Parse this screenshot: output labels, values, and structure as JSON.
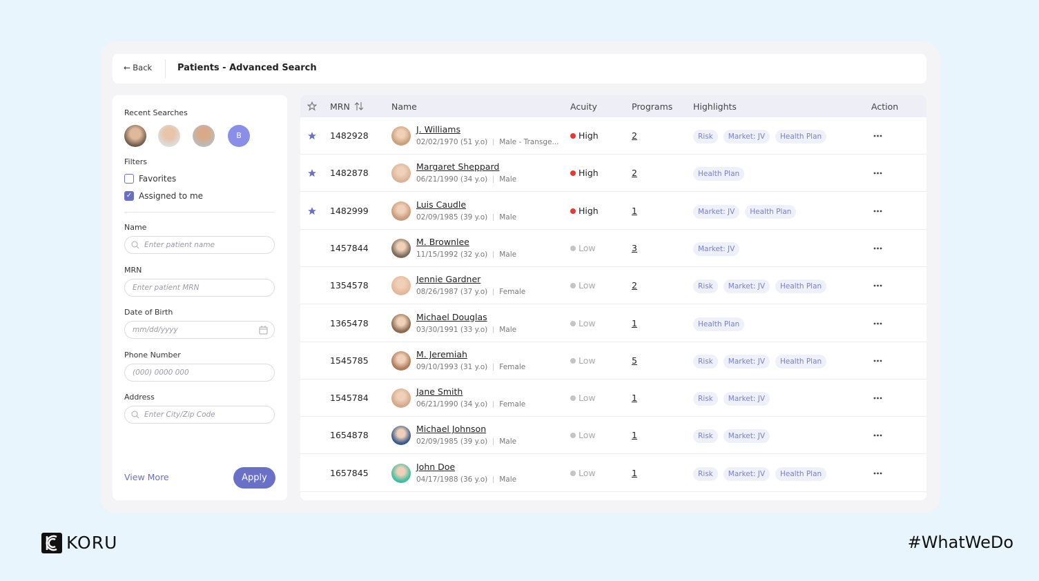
{
  "header": {
    "back": "Back",
    "title": "Patients - Advanced Search"
  },
  "sidebar": {
    "recent_searches": "Recent Searches",
    "recent_initial": "B",
    "filters": {
      "title": "Filters",
      "options": [
        {
          "label": "Favorites",
          "checked": false
        },
        {
          "label": "Assigned to me",
          "checked": true
        }
      ]
    },
    "fields": [
      {
        "label": "Name",
        "placeholder": "Enter patient name",
        "icon": "search"
      },
      {
        "label": "MRN",
        "placeholder": "Enter patient MRN",
        "icon": "none"
      },
      {
        "label": "Date of Birth",
        "placeholder": "mm/dd/yyyy",
        "icon": "calendar"
      },
      {
        "label": "Phone Number",
        "placeholder": "(000) 0000 000",
        "icon": "none"
      },
      {
        "label": "Address",
        "placeholder": "Enter City/Zip Code",
        "icon": "search"
      }
    ],
    "view_more": "View More",
    "apply": "Apply"
  },
  "table": {
    "columns": {
      "mrn": "MRN",
      "name": "Name",
      "acuity": "Acuity",
      "programs": "Programs",
      "highlights": "Highlights",
      "action": "Action"
    },
    "rows": [
      {
        "favorite": true,
        "mrn": 1482928,
        "name": "J. Williams",
        "dob": "02/02/1970 (51 y.o)",
        "gender": "Male - Transge...",
        "acuity": "High",
        "acuity_color": "#e53935",
        "programs": 2,
        "highlights": [
          "Risk",
          "Market: JV",
          "Health Plan"
        ]
      },
      {
        "favorite": true,
        "mrn": 1482878,
        "name": "Margaret Sheppard",
        "dob": "06/21/1990 (34 y.o)",
        "gender": "Male",
        "acuity": "High",
        "acuity_color": "#e53935",
        "programs": 2,
        "highlights": [
          "Health Plan"
        ]
      },
      {
        "favorite": true,
        "mrn": 1482999,
        "name": "Luis Caudle",
        "dob": "02/09/1985 (39 y.o)",
        "gender": "Male",
        "acuity": "High",
        "acuity_color": "#e53935",
        "programs": 1,
        "highlights": [
          "Market: JV",
          "Health Plan"
        ]
      },
      {
        "favorite": false,
        "mrn": 1457844,
        "name": "M. Brownlee",
        "dob": "11/15/1992 (32 y.o)",
        "gender": "Male",
        "acuity": "Low",
        "acuity_color": "#c4c4c4",
        "programs": 3,
        "highlights": [
          "Market: JV"
        ]
      },
      {
        "favorite": false,
        "mrn": 1354578,
        "name": "Jennie Gardner",
        "dob": "08/26/1987 (37 y.o)",
        "gender": "Female",
        "acuity": "Low",
        "acuity_color": "#c4c4c4",
        "programs": 2,
        "highlights": [
          "Risk",
          "Market: JV",
          "Health Plan"
        ]
      },
      {
        "favorite": false,
        "mrn": 1365478,
        "name": "Michael  Douglas",
        "dob": "03/30/1991 (33 y.o)",
        "gender": "Male",
        "acuity": "Low",
        "acuity_color": "#c4c4c4",
        "programs": 1,
        "highlights": [
          "Health Plan"
        ]
      },
      {
        "favorite": false,
        "mrn": 1545785,
        "name": "M. Jeremiah",
        "dob": "09/10/1993 (31 y.o)",
        "gender": "Female",
        "acuity": "Low",
        "acuity_color": "#c4c4c4",
        "programs": 5,
        "highlights": [
          "Risk",
          "Market: JV",
          "Health Plan"
        ]
      },
      {
        "favorite": false,
        "mrn": 1545784,
        "name": "Jane Smith",
        "dob": "06/21/1990 (34 y.o)",
        "gender": "Female",
        "acuity": "Low",
        "acuity_color": "#c4c4c4",
        "programs": 1,
        "highlights": [
          "Risk",
          "Market: JV"
        ]
      },
      {
        "favorite": false,
        "mrn": 1654878,
        "name": "Michael Johnson",
        "dob": "02/09/1985 (39 y.o)",
        "gender": "Male",
        "acuity": "Low",
        "acuity_color": "#c4c4c4",
        "programs": 1,
        "highlights": [
          "Risk",
          "Market: JV"
        ]
      },
      {
        "favorite": false,
        "mrn": 1657845,
        "name": "John Doe",
        "dob": "04/17/1988 (36 y.o)",
        "gender": "Male",
        "acuity": "Low",
        "acuity_color": "#c4c4c4",
        "programs": 1,
        "highlights": [
          "Risk",
          "Market: JV",
          "Health Plan"
        ]
      }
    ]
  },
  "footer": {
    "brand": "KORU",
    "hashtag": "#WhatWeDo"
  }
}
